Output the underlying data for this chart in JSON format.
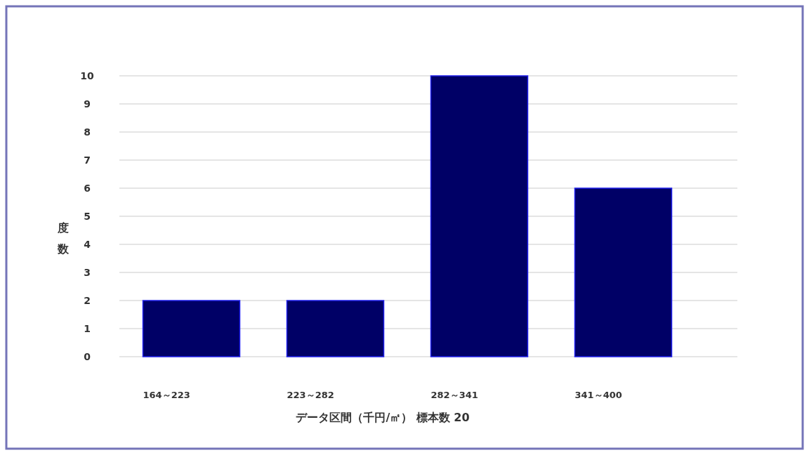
{
  "chart_data": {
    "type": "bar",
    "categories": [
      "164～223",
      "223～282",
      "282～341",
      "341～400"
    ],
    "values": [
      2,
      2,
      10,
      6
    ],
    "color": "#000066",
    "xlabel": "データ区間（千円/㎡） 標本数 20",
    "ylabel": "度数",
    "ylim": [
      0,
      10
    ],
    "yticks": [
      0,
      1,
      2,
      3,
      4,
      5,
      6,
      7,
      8,
      9,
      10
    ],
    "grid": "y"
  }
}
